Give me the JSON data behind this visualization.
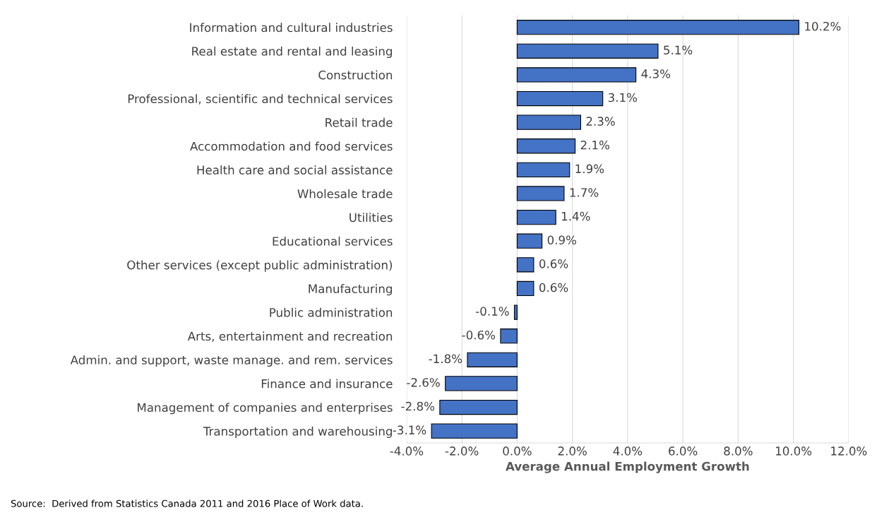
{
  "chart_data": {
    "type": "bar",
    "orientation": "horizontal",
    "categories": [
      "Information and cultural industries",
      "Real estate and rental and leasing",
      "Construction",
      "Professional, scientific and technical services",
      "Retail trade",
      "Accommodation and food services",
      "Health care and social assistance",
      "Wholesale trade",
      "Utilities",
      "Educational services",
      "Other services (except public administration)",
      "Manufacturing",
      "Public administration",
      "Arts, entertainment and recreation",
      "Admin. and support, waste manage. and rem. services",
      "Finance and insurance",
      "Management of companies and enterprises",
      "Transportation and warehousing"
    ],
    "values": [
      10.2,
      5.1,
      4.3,
      3.1,
      2.3,
      2.1,
      1.9,
      1.7,
      1.4,
      0.9,
      0.6,
      0.6,
      -0.1,
      -0.6,
      -1.8,
      -2.6,
      -2.8,
      -3.1
    ],
    "value_labels": [
      "10.2%",
      "5.1%",
      "4.3%",
      "3.1%",
      "2.3%",
      "2.1%",
      "1.9%",
      "1.7%",
      "1.4%",
      "0.9%",
      "0.6%",
      "0.6%",
      "-0.1%",
      "-0.6%",
      "-1.8%",
      "-2.6%",
      "-2.8%",
      "-3.1%"
    ],
    "color": "#4472c4",
    "xlim": [
      -4,
      12
    ],
    "xticks": [
      {
        "value": -4,
        "label": "-4.0%"
      },
      {
        "value": -2,
        "label": "-2.0%"
      },
      {
        "value": 0,
        "label": "0.0%"
      },
      {
        "value": 2,
        "label": "2.0%"
      },
      {
        "value": 4,
        "label": "4.0%"
      },
      {
        "value": 6,
        "label": "6.0%"
      },
      {
        "value": 8,
        "label": "8.0%"
      },
      {
        "value": 10,
        "label": "10.0%"
      },
      {
        "value": 12,
        "label": "12.0%"
      }
    ],
    "xlabel": "Average Annual Employment Growth",
    "grid": "x",
    "annotations": [
      "Source:  Derived from Statistics Canada 2011 and 2016 Place of Work data."
    ]
  }
}
